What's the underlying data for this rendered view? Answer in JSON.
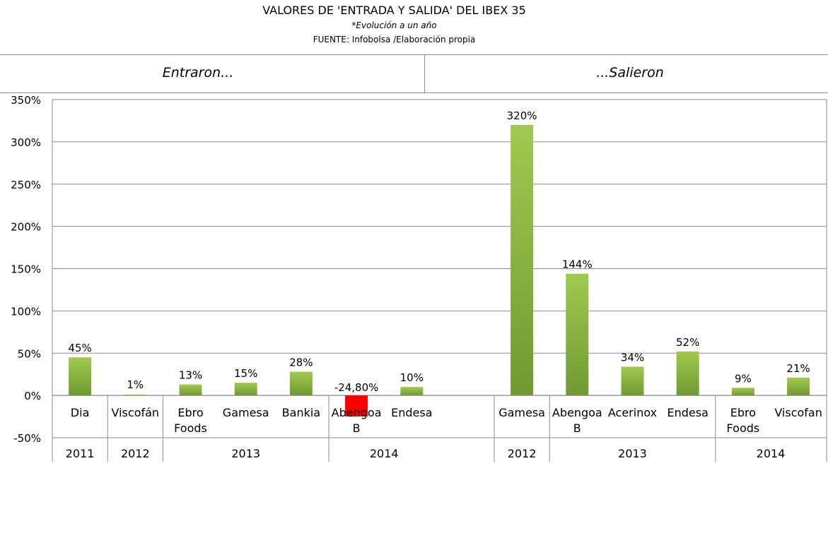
{
  "header": {
    "title": "VALORES DE 'ENTRADA Y SALIDA' DEL IBEX 35",
    "subtitle": "*Evolución a un año",
    "source": "FUENTE: Infobolsa  /Elaboración propia"
  },
  "sections": {
    "left": "Entraron...",
    "right": "...Salieron"
  },
  "chart_data": {
    "type": "bar",
    "title": "VALORES DE 'ENTRADA Y SALIDA' DEL IBEX 35",
    "ylim": [
      -50,
      350
    ],
    "ytick_step": 50,
    "yticks": [
      "350%",
      "300%",
      "250%",
      "200%",
      "150%",
      "100%",
      "50%",
      "0%",
      "-50%"
    ],
    "grid": true,
    "legend": "none",
    "colors": {
      "positive": "#8cb843",
      "negative": "#ff0000",
      "grid": "#8c8c8c"
    },
    "groups": [
      {
        "section": "Entraron...",
        "categories": [
          {
            "name": [
              "Dia"
            ],
            "value": 45,
            "label": "45%",
            "year": "2011"
          },
          {
            "name": [
              "Viscofán"
            ],
            "value": 1,
            "label": "1%",
            "year": "2012"
          },
          {
            "name": [
              "Ebro",
              "Foods"
            ],
            "value": 13,
            "label": "13%",
            "year": "2013"
          },
          {
            "name": [
              "Gamesa"
            ],
            "value": 15,
            "label": "15%",
            "year": "2013"
          },
          {
            "name": [
              "Bankia"
            ],
            "value": 28,
            "label": "28%",
            "year": "2013"
          },
          {
            "name": [
              "Abengoa",
              "B"
            ],
            "value": -24.8,
            "label": "-24,80%",
            "year": "2014"
          },
          {
            "name": [
              "Endesa"
            ],
            "value": 10,
            "label": "10%",
            "year": "2014"
          }
        ],
        "years": [
          {
            "label": "2011",
            "count": 1
          },
          {
            "label": "2012",
            "count": 1
          },
          {
            "label": "2013",
            "count": 3
          },
          {
            "label": "2014",
            "count": 2
          }
        ]
      },
      {
        "section": "...Salieron",
        "categories": [
          {
            "name": [
              "Gamesa"
            ],
            "value": 320,
            "label": "320%",
            "year": "2012"
          },
          {
            "name": [
              "Abengoa",
              "B"
            ],
            "value": 144,
            "label": "144%",
            "year": "2013"
          },
          {
            "name": [
              "Acerinox"
            ],
            "value": 34,
            "label": "34%",
            "year": "2013"
          },
          {
            "name": [
              "Endesa"
            ],
            "value": 52,
            "label": "52%",
            "year": "2013"
          },
          {
            "name": [
              "Ebro",
              "Foods"
            ],
            "value": 9,
            "label": "9%",
            "year": "2014"
          },
          {
            "name": [
              "Viscofan"
            ],
            "value": 21,
            "label": "21%",
            "year": "2014"
          }
        ],
        "years": [
          {
            "label": "2012",
            "count": 1
          },
          {
            "label": "2013",
            "count": 3
          },
          {
            "label": "2014",
            "count": 2
          }
        ]
      }
    ]
  }
}
